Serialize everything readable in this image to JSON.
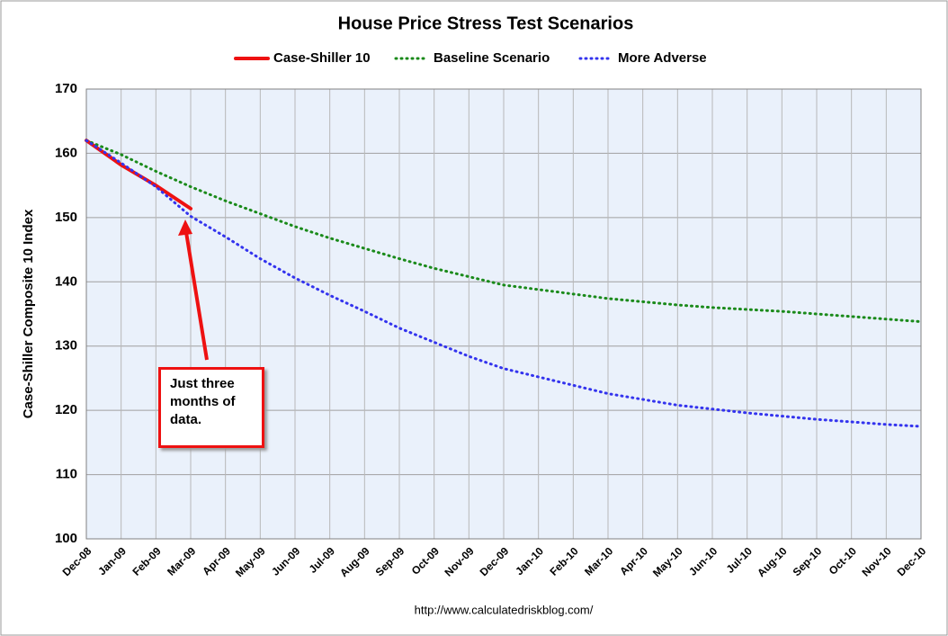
{
  "chart_data": {
    "type": "line",
    "title": "House Price Stress Test Scenarios",
    "y_label": "Case-Shiller Composite 10 Index",
    "source": "http://www.calculatedriskblog.com/",
    "annotation": "Just three months of data.",
    "categories": [
      "Dec-08",
      "Jan-09",
      "Feb-09",
      "Mar-09",
      "Apr-09",
      "May-09",
      "Jun-09",
      "Jul-09",
      "Aug-09",
      "Sep-09",
      "Oct-09",
      "Nov-09",
      "Dec-09",
      "Jan-10",
      "Feb-10",
      "Mar-10",
      "Apr-10",
      "May-10",
      "Jun-10",
      "Jul-10",
      "Aug-10",
      "Sep-10",
      "Oct-10",
      "Nov-10",
      "Dec-10"
    ],
    "series": [
      {
        "name": "Case-Shiller 10",
        "color": "#ee1111",
        "dash": false,
        "values": [
          162,
          158.2,
          155,
          151.4,
          null,
          null,
          null,
          null,
          null,
          null,
          null,
          null,
          null,
          null,
          null,
          null,
          null,
          null,
          null,
          null,
          null,
          null,
          null,
          null,
          null
        ]
      },
      {
        "name": "Baseline Scenario",
        "color": "#1a8a1a",
        "dash": true,
        "values": [
          162,
          159.8,
          157.2,
          154.8,
          152.6,
          150.6,
          148.6,
          146.8,
          145.2,
          143.6,
          142.1,
          140.8,
          139.5,
          138.8,
          138.1,
          137.4,
          136.9,
          136.4,
          136.0,
          135.7,
          135.4,
          135.0,
          134.6,
          134.2,
          133.8
        ]
      },
      {
        "name": "More Adverse",
        "color": "#3333ee",
        "dash": true,
        "values": [
          162,
          158.5,
          154.8,
          150.2,
          147.0,
          143.6,
          140.6,
          137.9,
          135.4,
          132.8,
          130.6,
          128.4,
          126.5,
          125.2,
          123.9,
          122.6,
          121.7,
          120.8,
          120.2,
          119.6,
          119.1,
          118.6,
          118.2,
          117.8,
          117.5
        ]
      }
    ],
    "ylim": [
      100,
      170
    ],
    "yticks": [
      100,
      110,
      120,
      130,
      140,
      150,
      160,
      170
    ],
    "grid": true,
    "legend": "top"
  }
}
